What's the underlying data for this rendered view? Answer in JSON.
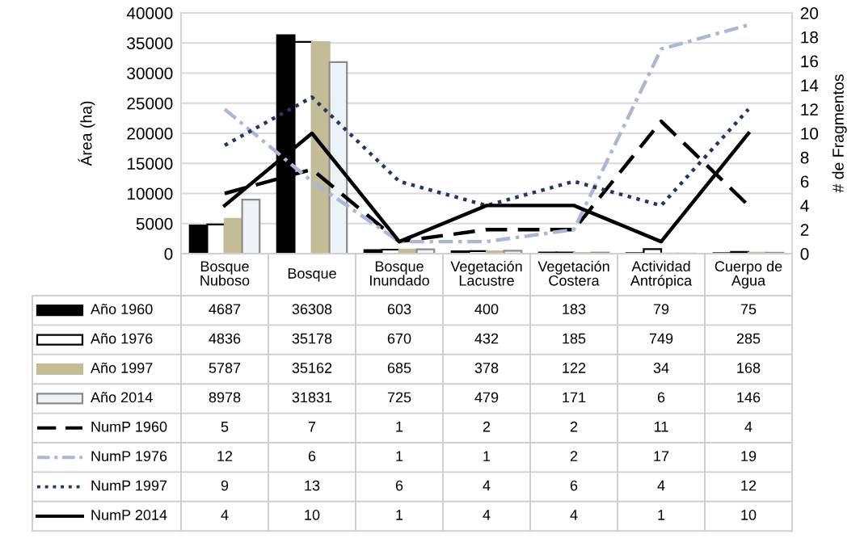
{
  "chart_data": {
    "type": "bar",
    "ylabel": "Área (ha)",
    "y2label": "# de Fragmentos",
    "categories": [
      "Bosque\nNuboso",
      "Bosque",
      "Bosque\nInundado",
      "Vegetación\nLacustre",
      "Vegetación\nCostera",
      "Actividad\nAntrópica",
      "Cuerpo de\nAgua"
    ],
    "series": [
      {
        "name": "Año 1960",
        "color": "#000000",
        "values": [
          4687,
          36308,
          603,
          400,
          183,
          79,
          75
        ]
      },
      {
        "name": "Año 1976",
        "color": "#ffffff",
        "values": [
          4836,
          35178,
          670,
          432,
          185,
          749,
          285
        ]
      },
      {
        "name": "Año 1997",
        "color": "#c4bc96",
        "values": [
          5787,
          35162,
          685,
          378,
          122,
          34,
          168
        ]
      },
      {
        "name": "Año 2014",
        "color": "#eef3f8",
        "values": [
          8978,
          31831,
          725,
          479,
          171,
          6,
          146
        ]
      },
      {
        "name": "NumP 1960",
        "type": "line",
        "axis": "y2",
        "line_style": "dashed",
        "color": "#000000",
        "values": [
          5,
          7,
          1,
          2,
          2,
          11,
          4
        ]
      },
      {
        "name": "NumP 1976",
        "type": "line",
        "axis": "y2",
        "line_style": "dashdot",
        "color": "#a9b7d8",
        "values": [
          12,
          6,
          1,
          1,
          2,
          17,
          19
        ]
      },
      {
        "name": "NumP 1997",
        "type": "line",
        "axis": "y2",
        "line_style": "dotted",
        "color": "#1f3864",
        "values": [
          9,
          13,
          6,
          4,
          6,
          4,
          12
        ]
      },
      {
        "name": "NumP 2014",
        "type": "line",
        "axis": "y2",
        "line_style": "solid",
        "color": "#000000",
        "values": [
          4,
          10,
          1,
          4,
          4,
          1,
          10
        ]
      }
    ],
    "ylim": [
      0,
      40000
    ],
    "yticks": [
      0,
      5000,
      10000,
      15000,
      20000,
      25000,
      30000,
      35000,
      40000
    ],
    "y2lim": [
      0,
      20
    ],
    "y2ticks": [
      0,
      2,
      4,
      6,
      8,
      10,
      12,
      14,
      16,
      18,
      20
    ],
    "grid": "y",
    "legend": "bottom",
    "data_labels": true
  }
}
